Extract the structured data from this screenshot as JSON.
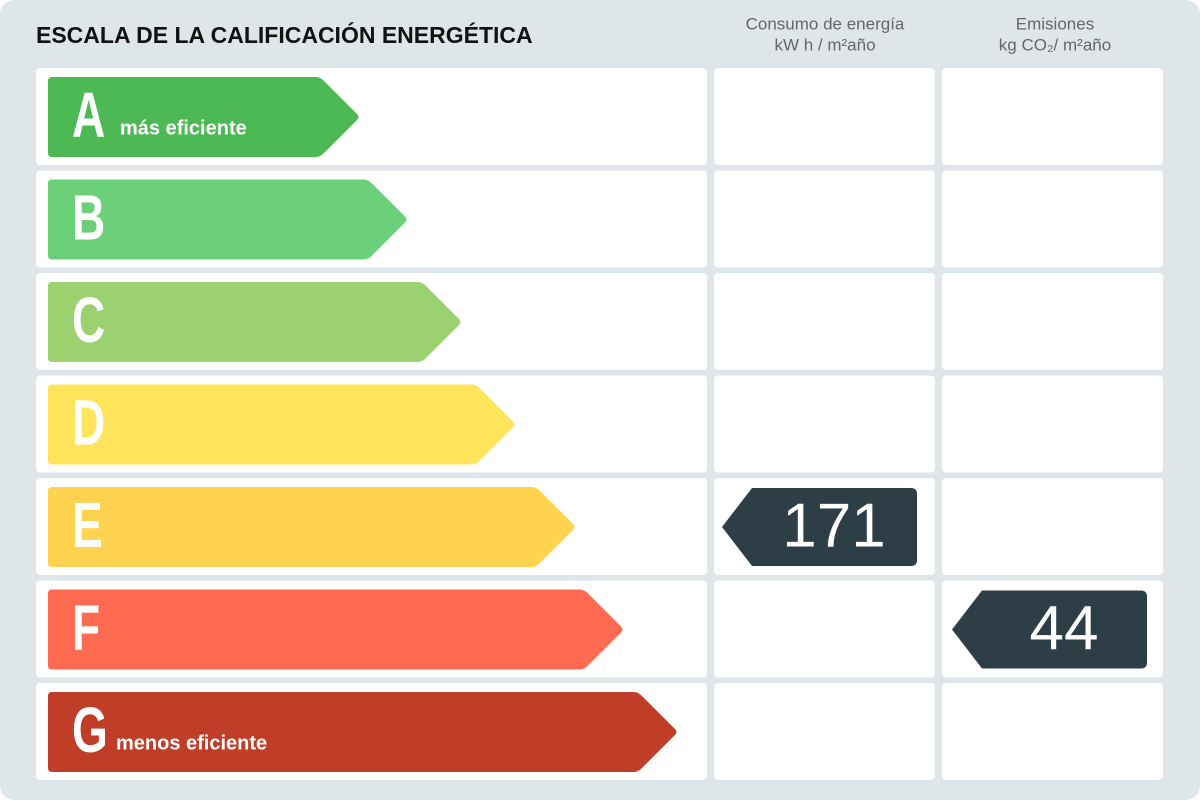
{
  "header": {
    "title": "ESCALA DE LA CALIFICACIÓN ENERGÉTICA",
    "energy": {
      "label": "Consumo de energía",
      "unit": "kW h / m²año"
    },
    "emissions": {
      "label": "Emisiones",
      "unit": "kg CO₂/ m²año"
    }
  },
  "ratings": [
    {
      "letter": "A",
      "label": "más eficiente",
      "color": "#4cb955"
    },
    {
      "letter": "B",
      "color": "#6cd07a"
    },
    {
      "letter": "C",
      "color": "#9bd16e"
    },
    {
      "letter": "D",
      "color": "#ffe45c"
    },
    {
      "letter": "E",
      "color": "#ffd24f"
    },
    {
      "letter": "F",
      "color": "#ff6b50"
    },
    {
      "letter": "G",
      "label": "menos eficiente",
      "color": "#c03d28"
    }
  ],
  "energy": {
    "rating": "E",
    "value": 171,
    "color": "#2d3e47"
  },
  "emissions": {
    "rating": "F",
    "value": 44,
    "color": "#2d3e47"
  }
}
